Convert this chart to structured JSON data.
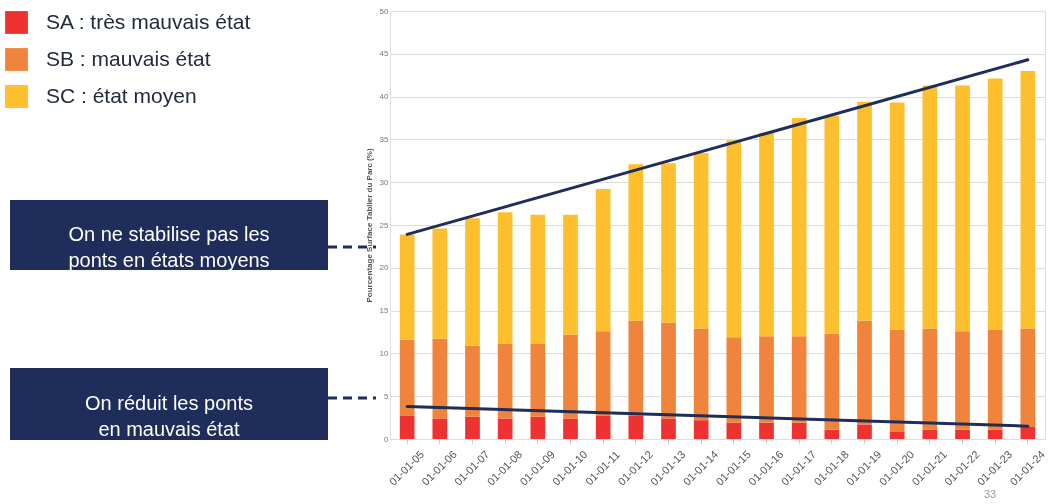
{
  "chart_data": {
    "type": "bar",
    "stacked": true,
    "ylabel": "Pourcentage Surface Tablier du Parc (%)",
    "categories": [
      "01-01-05",
      "01-01-06",
      "01-01-07",
      "01-01-08",
      "01-01-09",
      "01-01-10",
      "01-01-11",
      "01-01-12",
      "01-01-13",
      "01-01-14",
      "01-01-15",
      "01-01-16",
      "01-01-17",
      "01-01-18",
      "01-01-19",
      "01-01-20",
      "01-01-21",
      "01-01-22",
      "01-01-23",
      "01-01-24"
    ],
    "series": [
      {
        "name": "SA : très mauvais état",
        "color": "#ee3231",
        "values": [
          2.7,
          2.4,
          2.6,
          2.4,
          2.6,
          2.4,
          2.7,
          2.7,
          2.4,
          2.2,
          1.9,
          1.9,
          1.9,
          1.1,
          1.7,
          0.9,
          1.1,
          1.1,
          1.1,
          1.4
        ]
      },
      {
        "name": "SB : mauvais état",
        "color": "#f0843c",
        "values": [
          8.9,
          9.3,
          8.3,
          8.7,
          8.5,
          9.8,
          9.9,
          11.1,
          11.2,
          10.7,
          10.0,
          10.1,
          10.1,
          11.2,
          12.1,
          11.9,
          11.8,
          11.5,
          11.7,
          11.5
        ]
      },
      {
        "name": "SC : état moyen",
        "color": "#fdbf2d",
        "values": [
          12.3,
          12.9,
          14.9,
          15.4,
          15.1,
          14.0,
          16.6,
          18.3,
          18.6,
          20.5,
          23.0,
          23.8,
          25.5,
          25.5,
          25.6,
          26.5,
          28.4,
          28.7,
          29.3,
          30.1
        ]
      },
      {
        "type": "line",
        "color": "#1f2d5a",
        "x": [
          "01-01-05",
          "01-01-24"
        ],
        "values": [
          23.9,
          44.3
        ]
      },
      {
        "type": "line",
        "color": "#1f2d5a",
        "x": [
          "01-01-05",
          "01-01-24"
        ],
        "values": [
          3.8,
          1.5
        ]
      }
    ],
    "ylim": [
      0,
      50
    ],
    "yticks": [
      0,
      5,
      10,
      15,
      20,
      25,
      30,
      35,
      40,
      45,
      50
    ],
    "grid": "y",
    "legend": "left",
    "marker": "none",
    "line_style": "solid",
    "annotations": [
      "On ne stabilise pas les\nponts en états moyens",
      "On  réduit les ponts\nen mauvais état",
      "33"
    ]
  }
}
